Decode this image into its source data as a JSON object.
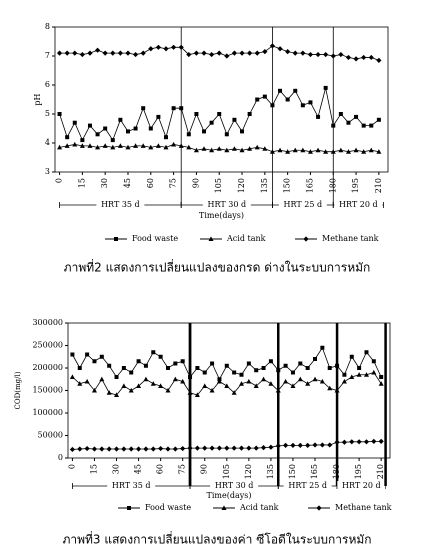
{
  "chart_data": [
    {
      "type": "line",
      "caption": "ภาพที่2 แสดงการเปลี่ยนแปลงของกรด ด่างในระบบการหมัก",
      "x_label": "Time(days)",
      "y_label": "pH",
      "x": [
        0,
        5,
        10,
        15,
        20,
        25,
        30,
        35,
        40,
        45,
        50,
        55,
        60,
        65,
        70,
        75,
        80,
        85,
        90,
        95,
        100,
        105,
        110,
        115,
        120,
        125,
        130,
        135,
        140,
        145,
        150,
        155,
        160,
        165,
        170,
        175,
        180,
        185,
        190,
        195,
        200,
        205,
        210
      ],
      "xlim": [
        -3,
        216
      ],
      "xticks": [
        0,
        15,
        30,
        45,
        60,
        75,
        90,
        105,
        120,
        135,
        150,
        165,
        180,
        195,
        210
      ],
      "ylim": [
        3,
        8
      ],
      "yticks": [
        3,
        4,
        5,
        6,
        7,
        8
      ],
      "legend": "bottom",
      "dividers": "thin",
      "periods": [
        {
          "label": "HRT 35 d",
          "start": 0,
          "end": 80
        },
        {
          "label": "HRT 30 d",
          "start": 80,
          "end": 140
        },
        {
          "label": "HRT 25 d",
          "start": 140,
          "end": 180
        },
        {
          "label": "HRT 20 d",
          "start": 180,
          "end": 213
        }
      ],
      "series": [
        {
          "name": "Food waste",
          "color": "#000000",
          "marker": "square",
          "values": [
            5.0,
            4.2,
            4.7,
            4.1,
            4.6,
            4.3,
            4.5,
            4.1,
            4.8,
            4.4,
            4.5,
            5.2,
            4.5,
            4.9,
            4.2,
            5.2,
            5.2,
            4.3,
            5.0,
            4.4,
            4.7,
            5.0,
            4.3,
            4.8,
            4.4,
            5.0,
            5.5,
            5.6,
            5.3,
            5.8,
            5.5,
            5.8,
            5.3,
            5.4,
            4.9,
            5.9,
            4.6,
            5.0,
            4.7,
            4.9,
            4.6,
            4.6,
            4.8
          ]
        },
        {
          "name": "Acid tank",
          "color": "#000000",
          "marker": "triangle",
          "values": [
            3.85,
            3.9,
            3.95,
            3.9,
            3.9,
            3.85,
            3.9,
            3.85,
            3.9,
            3.85,
            3.9,
            3.9,
            3.85,
            3.9,
            3.85,
            3.95,
            3.9,
            3.85,
            3.75,
            3.8,
            3.75,
            3.8,
            3.75,
            3.8,
            3.75,
            3.8,
            3.85,
            3.8,
            3.7,
            3.75,
            3.7,
            3.75,
            3.75,
            3.7,
            3.75,
            3.7,
            3.7,
            3.75,
            3.7,
            3.75,
            3.7,
            3.75,
            3.7
          ]
        },
        {
          "name": "Methane tank",
          "color": "#000000",
          "marker": "diamond",
          "values": [
            7.1,
            7.1,
            7.1,
            7.05,
            7.1,
            7.2,
            7.1,
            7.1,
            7.1,
            7.1,
            7.05,
            7.1,
            7.25,
            7.3,
            7.25,
            7.3,
            7.3,
            7.05,
            7.1,
            7.1,
            7.05,
            7.1,
            7.0,
            7.1,
            7.1,
            7.1,
            7.1,
            7.15,
            7.35,
            7.25,
            7.15,
            7.1,
            7.1,
            7.05,
            7.05,
            7.05,
            7.0,
            7.05,
            6.95,
            6.9,
            6.95,
            6.95,
            6.85
          ]
        }
      ]
    },
    {
      "type": "line",
      "caption": "ภาพที่3 แสดงการเปลี่ยนแปลงของค่า ซีโอดีในระบบการหมัก",
      "x_label": "Time(days)",
      "y_label": "COD(mg/l)",
      "x": [
        0,
        5,
        10,
        15,
        20,
        25,
        30,
        35,
        40,
        45,
        50,
        55,
        60,
        65,
        70,
        75,
        80,
        85,
        90,
        95,
        100,
        105,
        110,
        115,
        120,
        125,
        130,
        135,
        140,
        145,
        150,
        155,
        160,
        165,
        170,
        175,
        180,
        185,
        190,
        195,
        200,
        205,
        210
      ],
      "xlim": [
        -3,
        216
      ],
      "xticks": [
        0,
        15,
        30,
        45,
        60,
        75,
        90,
        105,
        120,
        135,
        150,
        165,
        180,
        195,
        210
      ],
      "ylim": [
        0,
        300000
      ],
      "yticks": [
        0,
        50000,
        100000,
        150000,
        200000,
        250000,
        300000
      ],
      "legend": "bottom",
      "dividers": "thick",
      "periods": [
        {
          "label": "HRT 35 d",
          "start": 0,
          "end": 80
        },
        {
          "label": "HRT 30 d",
          "start": 80,
          "end": 140
        },
        {
          "label": "HRT 25 d",
          "start": 140,
          "end": 180
        },
        {
          "label": "HRT 20 d",
          "start": 180,
          "end": 213
        }
      ],
      "series": [
        {
          "name": "Food waste",
          "color": "#000000",
          "marker": "square",
          "values": [
            230000,
            200000,
            230000,
            215000,
            225000,
            205000,
            180000,
            200000,
            190000,
            215000,
            205000,
            235000,
            225000,
            200000,
            210000,
            215000,
            180000,
            200000,
            190000,
            210000,
            175000,
            205000,
            190000,
            185000,
            210000,
            195000,
            200000,
            215000,
            195000,
            205000,
            190000,
            210000,
            200000,
            220000,
            245000,
            200000,
            205000,
            185000,
            225000,
            200000,
            235000,
            215000,
            180000
          ]
        },
        {
          "name": "Acid tank",
          "color": "#000000",
          "marker": "triangle",
          "values": [
            180000,
            165000,
            170000,
            150000,
            175000,
            145000,
            140000,
            160000,
            150000,
            160000,
            175000,
            165000,
            160000,
            150000,
            175000,
            170000,
            145000,
            140000,
            160000,
            150000,
            170000,
            160000,
            145000,
            165000,
            170000,
            160000,
            175000,
            165000,
            150000,
            170000,
            160000,
            175000,
            165000,
            175000,
            170000,
            155000,
            150000,
            170000,
            180000,
            185000,
            185000,
            190000,
            165000
          ]
        },
        {
          "name": "Methane tank",
          "color": "#000000",
          "marker": "diamond",
          "values": [
            19000,
            20000,
            21000,
            20000,
            20000,
            20000,
            20000,
            20000,
            20000,
            20000,
            20000,
            20000,
            21000,
            20000,
            20000,
            21000,
            22000,
            22000,
            22000,
            22000,
            22000,
            22000,
            22000,
            22000,
            22000,
            22000,
            23000,
            24000,
            27000,
            28000,
            28000,
            28000,
            28000,
            29000,
            29000,
            29000,
            35000,
            35000,
            36000,
            36000,
            36000,
            37000,
            37000
          ]
        }
      ]
    }
  ]
}
